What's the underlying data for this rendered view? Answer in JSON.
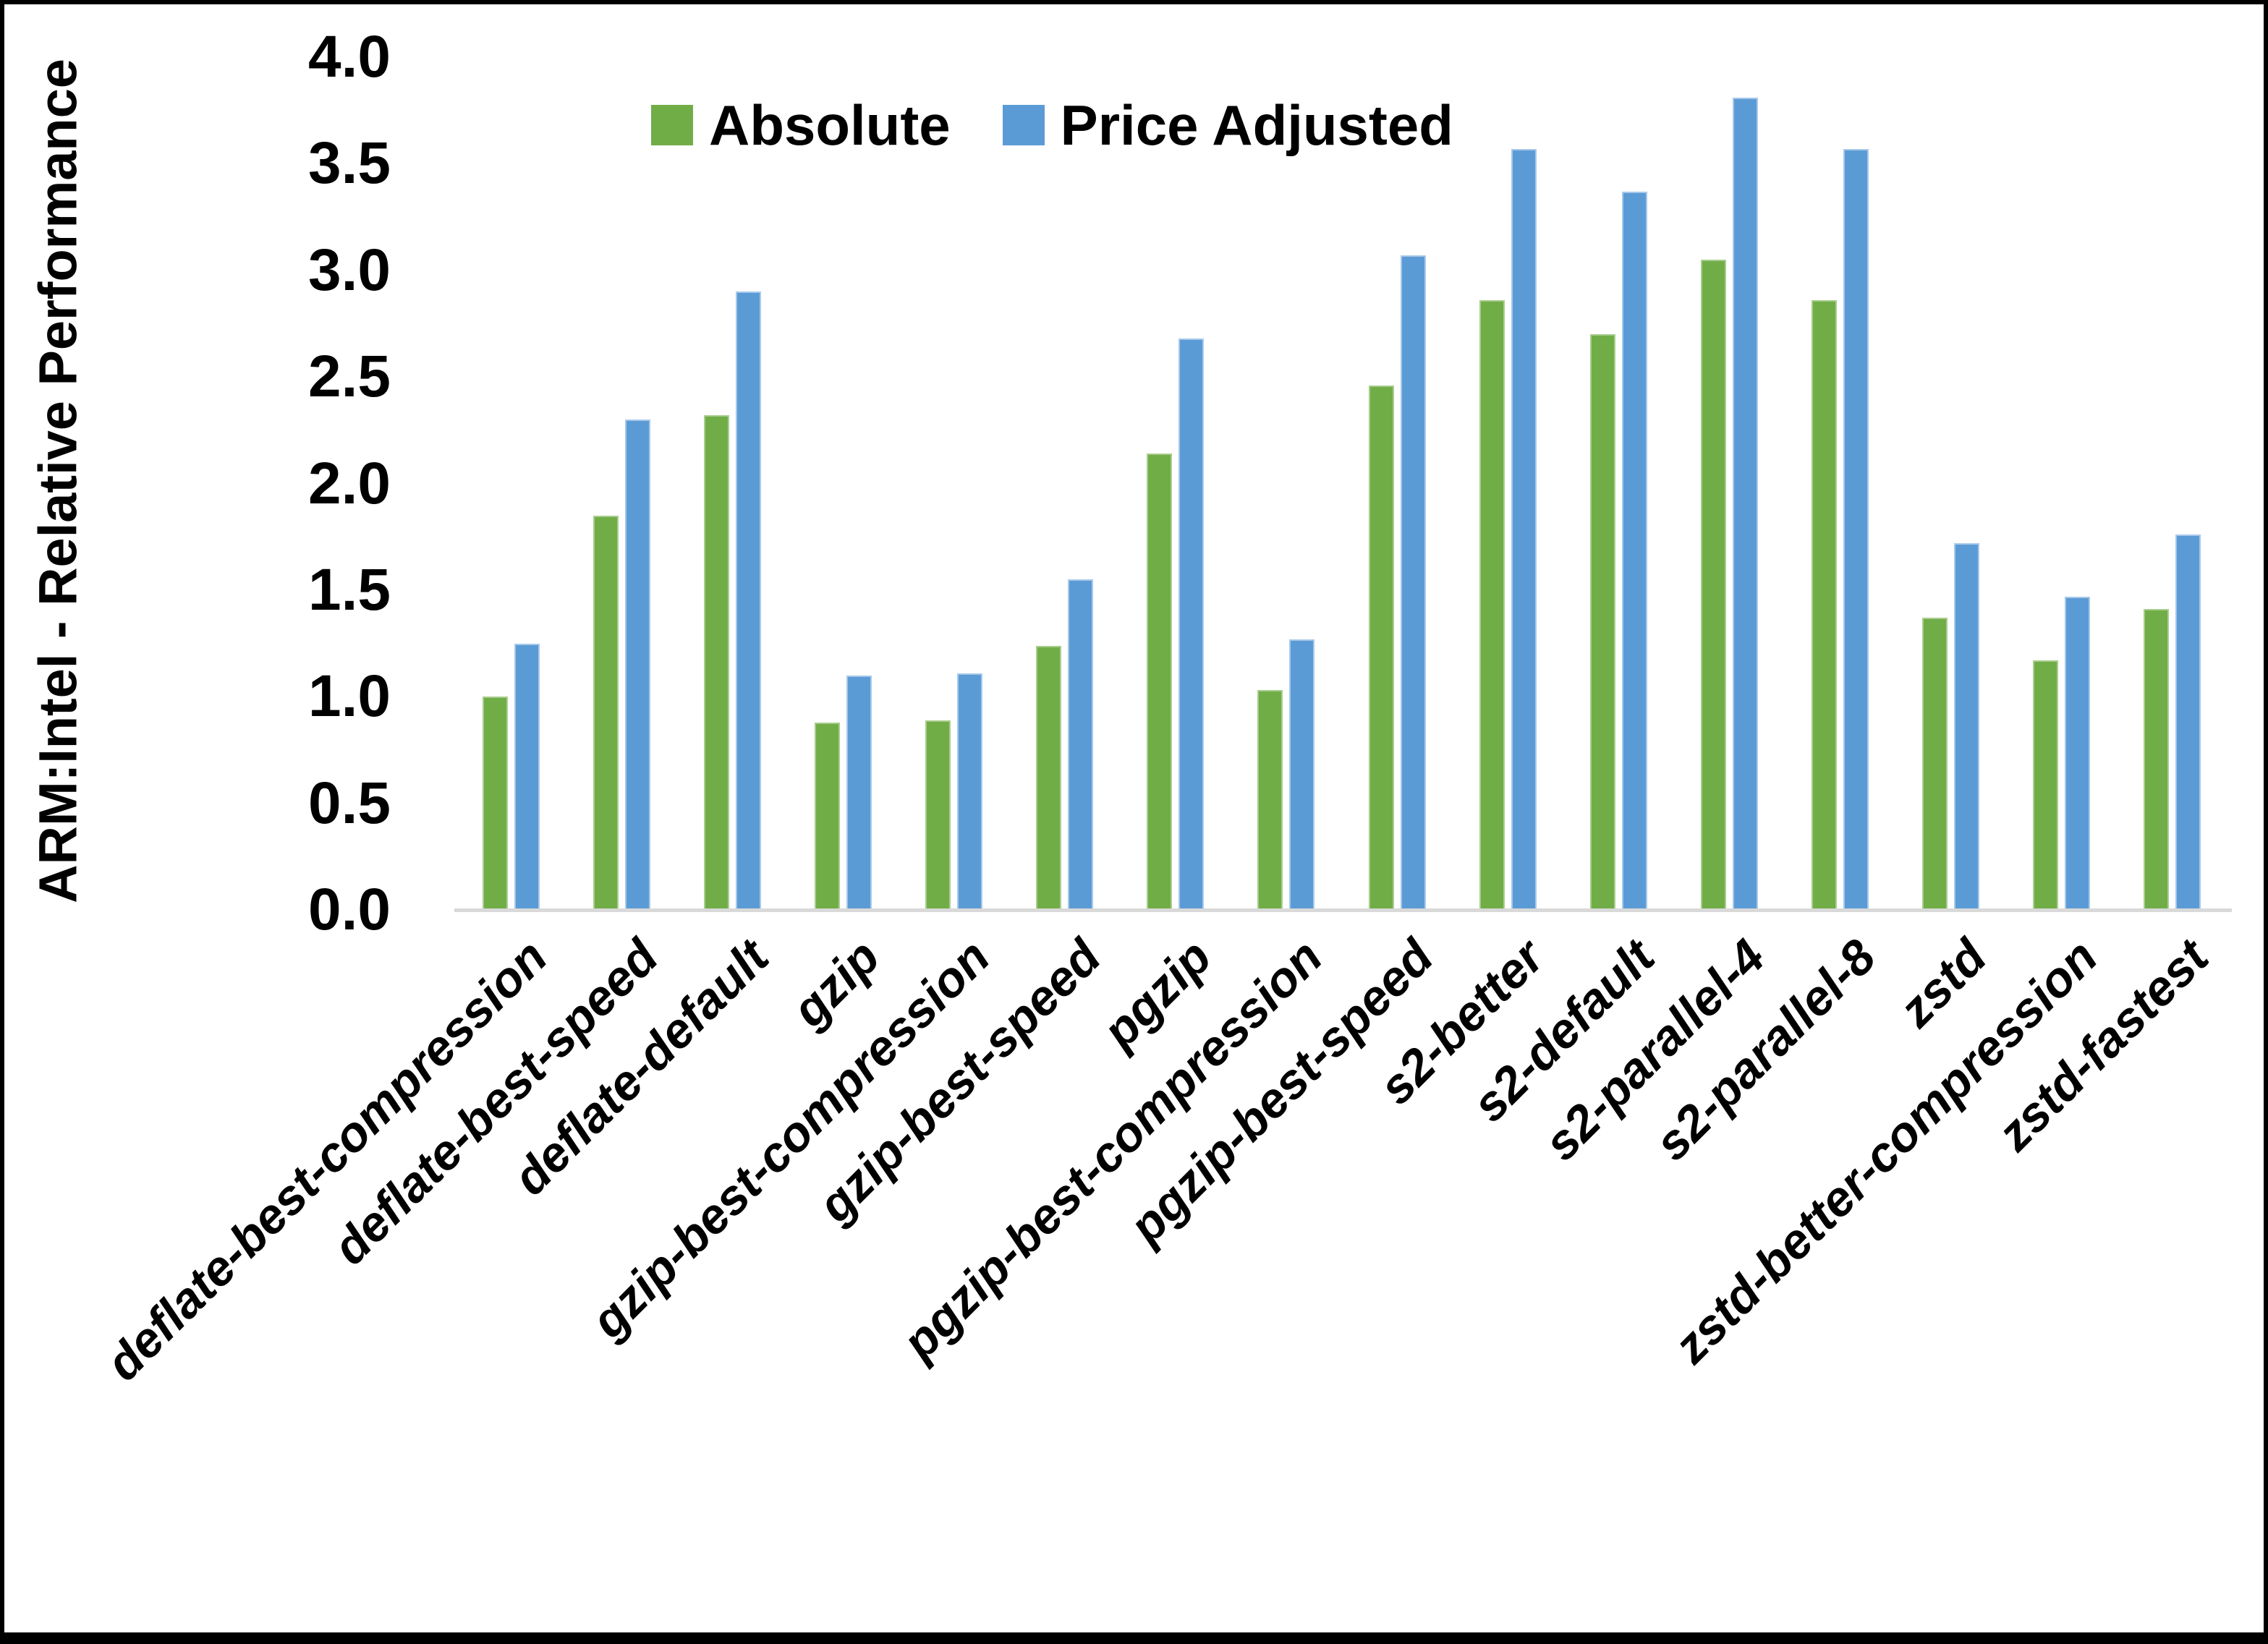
{
  "colors": {
    "absolute": "#70AD47",
    "absolute_edge": "#A9CD8E",
    "price_adjusted": "#5B9BD5",
    "price_adjusted_edge": "#A7C9EA",
    "axis_line": "#D9D9D9",
    "text": "#000000",
    "background": "#FFFFFF"
  },
  "chart_data": {
    "type": "bar",
    "title": "",
    "ylabel": "ARM:Intel - Relative Performance",
    "xlabel": "",
    "ylim": [
      0.0,
      4.0
    ],
    "ytick_step": 0.5,
    "yticks": [
      "4.0",
      "3.5",
      "3.0",
      "2.5",
      "2.0",
      "1.5",
      "1.0",
      "0.5",
      "0.0"
    ],
    "grid": false,
    "legend_position": "top-center",
    "categories": [
      "deflate-best-compression",
      "deflate-best-speed",
      "deflate-default",
      "gzip",
      "gzip-best-compression",
      "gzip-best-speed",
      "pgzip",
      "pgzip-best-compression",
      "pgzip-best-speed",
      "s2-better",
      "s2-default",
      "s2-parallel-4",
      "s2-parallel-8",
      "zstd",
      "zstd-better-compression",
      "zstd-fastest"
    ],
    "series": [
      {
        "name": "Absolute",
        "color": "#70AD47",
        "values": [
          1.0,
          1.85,
          2.32,
          0.88,
          0.89,
          1.24,
          2.14,
          1.03,
          2.46,
          2.86,
          2.7,
          3.05,
          2.86,
          1.37,
          1.17,
          1.41
        ]
      },
      {
        "name": "Price Adjusted",
        "color": "#5B9BD5",
        "values": [
          1.25,
          2.3,
          2.9,
          1.1,
          1.11,
          1.55,
          2.68,
          1.27,
          3.07,
          3.57,
          3.37,
          3.81,
          3.57,
          1.72,
          1.47,
          1.76
        ]
      }
    ]
  }
}
